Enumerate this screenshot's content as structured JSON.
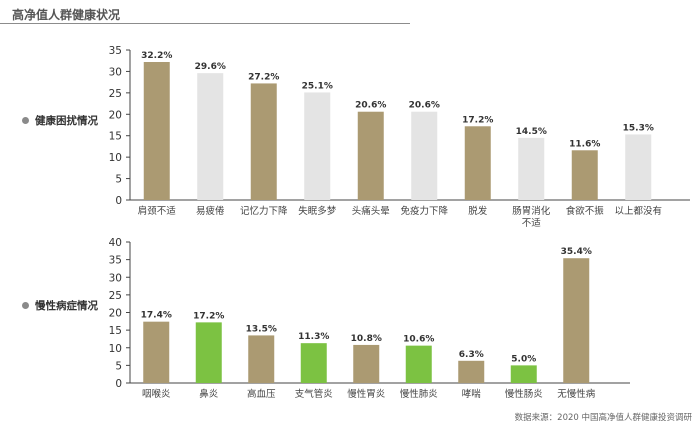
{
  "page_title": "高净值人群健康状况",
  "source_note": "数据来源：2020 中国高净值人群健康投资调研",
  "colors": {
    "tan": "#ab9a72",
    "light": "#e4e4e4",
    "green": "#7cc242"
  },
  "chart_data": [
    {
      "type": "bar",
      "section_label": "健康困扰情况",
      "categories": [
        "肩颈不适",
        "易疲倦",
        "记忆力下降",
        "失眠多梦",
        "头痛头晕",
        "免疫力下降",
        "脱发",
        [
          "肠胃消化",
          "不适"
        ],
        "食欲不振",
        "以上都没有"
      ],
      "values": [
        32.2,
        29.6,
        27.2,
        25.1,
        20.6,
        20.6,
        17.2,
        14.5,
        11.6,
        15.3
      ],
      "value_labels": [
        "32.2%",
        "29.6%",
        "27.2%",
        "25.1%",
        "20.6%",
        "20.6%",
        "17.2%",
        "14.5%",
        "11.6%",
        "15.3%"
      ],
      "bar_colors": [
        "tan",
        "light",
        "tan",
        "light",
        "tan",
        "light",
        "tan",
        "light",
        "tan",
        "light"
      ],
      "yticks": [
        0,
        5,
        10,
        15,
        20,
        25,
        30,
        35
      ],
      "ylim": [
        0,
        35
      ],
      "grid": false
    },
    {
      "type": "bar",
      "section_label": "慢性病症情况",
      "categories": [
        "咽喉炎",
        "鼻炎",
        "高血压",
        "支气管炎",
        "慢性胃炎",
        "慢性肺炎",
        "哮喘",
        "慢性肠炎",
        "无慢性病"
      ],
      "values": [
        17.4,
        17.2,
        13.5,
        11.3,
        10.8,
        10.6,
        6.3,
        5.0,
        35.4
      ],
      "value_labels": [
        "17.4%",
        "17.2%",
        "13.5%",
        "11.3%",
        "10.8%",
        "10.6%",
        "6.3%",
        "5.0%",
        "35.4%"
      ],
      "bar_colors": [
        "tan",
        "green",
        "tan",
        "green",
        "tan",
        "green",
        "tan",
        "green",
        "tan"
      ],
      "yticks": [
        0,
        5,
        10,
        15,
        20,
        25,
        30,
        35,
        40
      ],
      "ylim": [
        0,
        40
      ],
      "grid": false
    }
  ]
}
